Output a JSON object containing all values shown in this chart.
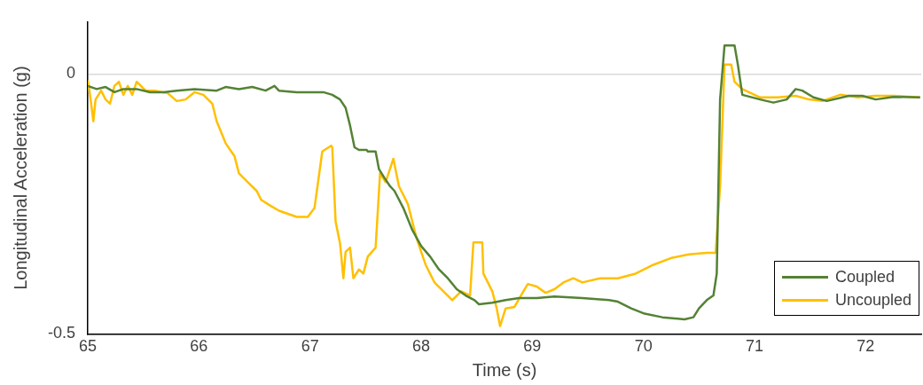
{
  "chart_data": {
    "type": "line",
    "xlabel": "Time (s)",
    "ylabel": "Longitudinal Acceleration (g)",
    "xlim": [
      65,
      72.5
    ],
    "xticks": [
      65,
      66,
      67,
      68,
      69,
      70,
      71,
      72
    ],
    "ylim": [
      -0.5,
      0.1
    ],
    "yticks": [
      -0.5,
      0
    ],
    "grid": "y",
    "legend": "bottom right",
    "marker": "none",
    "line_style": "solid",
    "series": [
      {
        "name": "Coupled",
        "color": "#548235",
        "x": [
          65.0,
          65.08,
          65.16,
          65.24,
          65.32,
          65.44,
          65.56,
          65.68,
          65.8,
          65.96,
          66.16,
          66.24,
          66.36,
          66.48,
          66.6,
          66.68,
          66.72,
          66.88,
          67.12,
          67.2,
          67.27,
          67.32,
          67.36,
          67.4,
          67.44,
          67.51,
          67.52,
          67.59,
          67.62,
          67.67,
          67.72,
          67.76,
          67.84,
          67.92,
          68.0,
          68.08,
          68.16,
          68.24,
          68.32,
          68.4,
          68.48,
          68.52,
          68.64,
          68.76,
          68.88,
          69.04,
          69.2,
          69.45,
          69.69,
          69.77,
          69.89,
          70.01,
          70.17,
          70.37,
          70.45,
          70.5,
          70.57,
          70.63,
          70.66,
          70.69,
          70.73,
          70.82,
          70.85,
          70.89,
          71.05,
          71.17,
          71.29,
          71.37,
          71.43,
          71.53,
          71.65,
          71.85,
          71.97,
          72.09,
          72.25,
          72.49
        ],
        "values": [
          -0.023,
          -0.029,
          -0.025,
          -0.035,
          -0.029,
          -0.029,
          -0.035,
          -0.035,
          -0.032,
          -0.029,
          -0.032,
          -0.025,
          -0.029,
          -0.025,
          -0.032,
          -0.023,
          -0.032,
          -0.035,
          -0.035,
          -0.04,
          -0.049,
          -0.065,
          -0.099,
          -0.141,
          -0.146,
          -0.146,
          -0.149,
          -0.149,
          -0.183,
          -0.2,
          -0.216,
          -0.225,
          -0.258,
          -0.3,
          -0.331,
          -0.351,
          -0.376,
          -0.393,
          -0.414,
          -0.426,
          -0.435,
          -0.443,
          -0.44,
          -0.435,
          -0.431,
          -0.431,
          -0.428,
          -0.431,
          -0.435,
          -0.438,
          -0.451,
          -0.461,
          -0.468,
          -0.472,
          -0.468,
          -0.451,
          -0.435,
          -0.426,
          -0.384,
          -0.049,
          0.055,
          0.055,
          0.018,
          -0.04,
          -0.049,
          -0.055,
          -0.049,
          -0.029,
          -0.032,
          -0.045,
          -0.052,
          -0.042,
          -0.042,
          -0.049,
          -0.044,
          -0.045
        ]
      },
      {
        "name": "Uncoupled",
        "color": "#ffc000",
        "x": [
          65.0,
          65.02,
          65.05,
          65.07,
          65.12,
          65.16,
          65.2,
          65.24,
          65.28,
          65.32,
          65.36,
          65.4,
          65.44,
          65.52,
          65.6,
          65.72,
          65.8,
          65.88,
          65.96,
          66.04,
          66.12,
          66.16,
          66.24,
          66.32,
          66.36,
          66.44,
          66.52,
          66.56,
          66.64,
          66.72,
          66.88,
          66.98,
          67.04,
          67.11,
          67.19,
          67.2,
          67.23,
          67.27,
          67.3,
          67.32,
          67.36,
          67.39,
          67.44,
          67.48,
          67.52,
          67.59,
          67.63,
          67.68,
          67.75,
          67.8,
          67.88,
          67.96,
          68.04,
          68.12,
          68.2,
          68.28,
          68.36,
          68.44,
          68.47,
          68.55,
          68.56,
          68.64,
          68.68,
          68.71,
          68.76,
          68.84,
          68.92,
          68.96,
          69.04,
          69.12,
          69.2,
          69.28,
          69.37,
          69.45,
          69.61,
          69.77,
          69.93,
          70.09,
          70.25,
          70.41,
          70.57,
          70.65,
          70.69,
          70.73,
          70.79,
          70.82,
          70.89,
          71.05,
          71.21,
          71.37,
          71.49,
          71.61,
          71.77,
          71.93,
          72.09,
          72.25,
          72.49
        ],
        "values": [
          -0.012,
          -0.04,
          -0.091,
          -0.049,
          -0.032,
          -0.049,
          -0.057,
          -0.023,
          -0.015,
          -0.04,
          -0.023,
          -0.04,
          -0.015,
          -0.032,
          -0.032,
          -0.037,
          -0.052,
          -0.049,
          -0.035,
          -0.04,
          -0.057,
          -0.091,
          -0.133,
          -0.158,
          -0.191,
          -0.208,
          -0.225,
          -0.242,
          -0.253,
          -0.263,
          -0.275,
          -0.275,
          -0.258,
          -0.149,
          -0.138,
          -0.141,
          -0.284,
          -0.326,
          -0.393,
          -0.342,
          -0.334,
          -0.393,
          -0.376,
          -0.384,
          -0.351,
          -0.334,
          -0.191,
          -0.208,
          -0.163,
          -0.216,
          -0.25,
          -0.317,
          -0.367,
          -0.401,
          -0.418,
          -0.435,
          -0.418,
          -0.426,
          -0.324,
          -0.324,
          -0.384,
          -0.418,
          -0.451,
          -0.485,
          -0.451,
          -0.448,
          -0.418,
          -0.404,
          -0.409,
          -0.421,
          -0.414,
          -0.401,
          -0.393,
          -0.401,
          -0.393,
          -0.393,
          -0.384,
          -0.367,
          -0.354,
          -0.347,
          -0.344,
          -0.344,
          -0.216,
          0.018,
          0.018,
          -0.015,
          -0.029,
          -0.045,
          -0.045,
          -0.042,
          -0.049,
          -0.052,
          -0.04,
          -0.045,
          -0.042,
          -0.042,
          -0.045
        ]
      }
    ]
  }
}
